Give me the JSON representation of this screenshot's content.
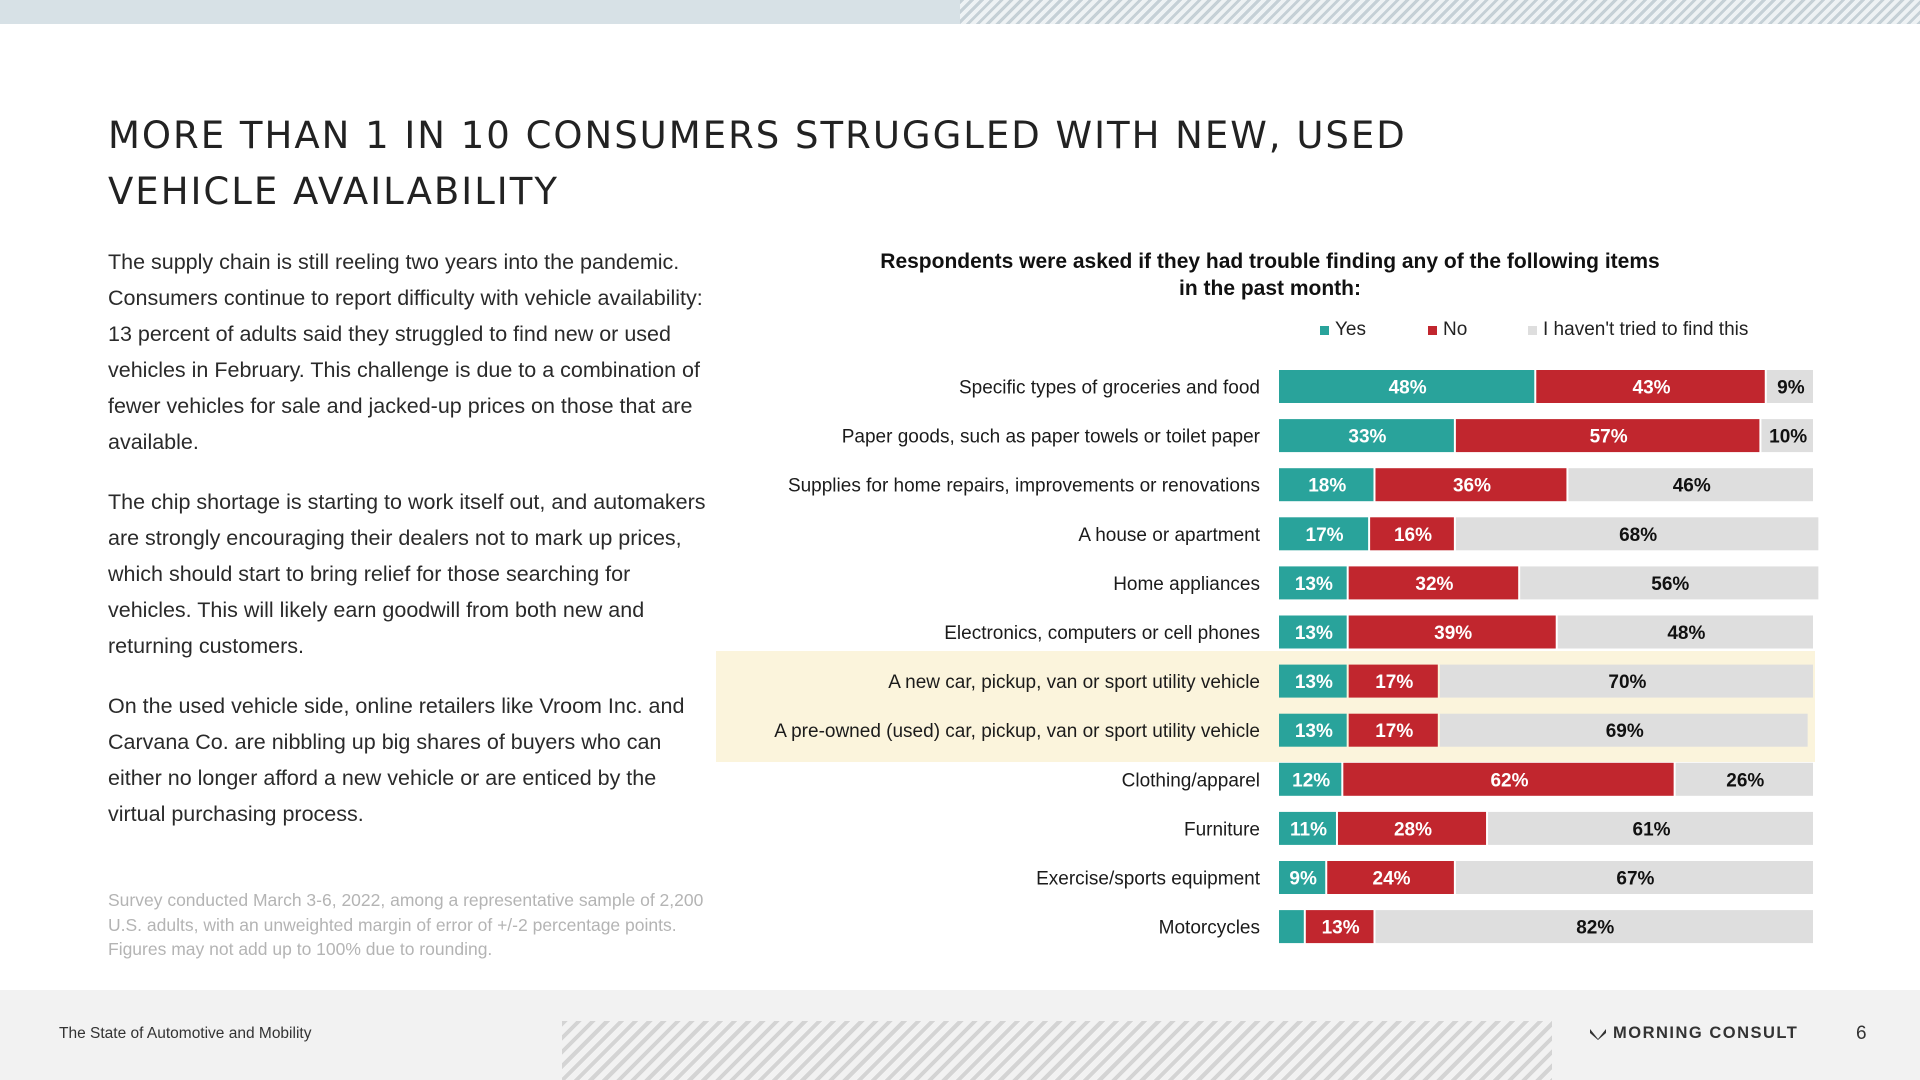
{
  "slide": {
    "title": "MORE THAN 1 IN 10 CONSUMERS STRUGGLED WITH NEW, USED VEHICLE AVAILABILITY",
    "paragraphs": [
      "The supply chain is still reeling two years into the pandemic. Consumers continue to report difficulty with vehicle availability: 13 percent of adults said they struggled to find new or used vehicles in February. This challenge is due to a combination of fewer vehicles for sale and jacked-up prices on those that are available.",
      "The chip shortage is starting to work itself out, and automakers are strongly encouraging their dealers not to mark up prices, which should start to bring relief for those searching for vehicles. This will likely earn goodwill from both new and returning customers.",
      "On the used vehicle side, online retailers like Vroom Inc. and Carvana Co. are nibbling up big shares of buyers who can either no longer afford a new vehicle or are enticed by the virtual purchasing process."
    ],
    "footnote": "Survey conducted March 3-6, 2022, among a representative sample of 2,200 U.S. adults, with an unweighted margin of error of +/-2 percentage points. Figures may not add up to 100% due to rounding.",
    "footer_left": "The State of Automotive and Mobility",
    "brand": "MORNING CONSULT",
    "page_number": "6"
  },
  "colors": {
    "yes": "#29a39b",
    "no": "#c1262e",
    "not_tried": "#dedede",
    "highlight": "#fbf4dc"
  },
  "chart_data": {
    "type": "bar",
    "orientation": "horizontal",
    "stacked": true,
    "title": "Respondents were asked if they had trouble finding any of the following items in the past month:",
    "value_suffix": "%",
    "xlim": [
      0,
      100
    ],
    "legend_position": "top-right",
    "categories": [
      "Specific types of groceries and food",
      "Paper goods, such as paper towels or toilet paper",
      "Supplies for home repairs, improvements or renovations",
      "A house or apartment",
      "Home appliances",
      "Electronics, computers or cell phones",
      "A new car, pickup, van or sport utility vehicle",
      "A pre-owned (used) car, pickup, van or sport utility vehicle",
      "Clothing/apparel",
      "Furniture",
      "Exercise/sports equipment",
      "Motorcycles"
    ],
    "highlighted_categories": [
      "A new car, pickup, van or sport utility vehicle",
      "A pre-owned (used) car, pickup, van or sport utility vehicle"
    ],
    "series": [
      {
        "name": "Yes",
        "color": "#29a39b",
        "values": [
          48,
          33,
          18,
          17,
          13,
          13,
          13,
          13,
          12,
          11,
          9,
          5
        ],
        "labels": [
          "48%",
          "33%",
          "18%",
          "17%",
          "13%",
          "13%",
          "13%",
          "13%",
          "12%",
          "11%",
          "9%",
          ""
        ]
      },
      {
        "name": "No",
        "color": "#c1262e",
        "values": [
          43,
          57,
          36,
          16,
          32,
          39,
          17,
          17,
          62,
          28,
          24,
          13
        ],
        "labels": [
          "43%",
          "57%",
          "36%",
          "16%",
          "32%",
          "39%",
          "17%",
          "17%",
          "62%",
          "28%",
          "24%",
          "13%"
        ]
      },
      {
        "name": "I haven't tried to find this",
        "color": "#dedede",
        "values": [
          9,
          10,
          46,
          68,
          56,
          48,
          70,
          69,
          26,
          61,
          67,
          82
        ],
        "labels": [
          "9%",
          "10%",
          "46%",
          "68%",
          "56%",
          "48%",
          "70%",
          "69%",
          "26%",
          "61%",
          "67%",
          "82%"
        ]
      }
    ]
  }
}
